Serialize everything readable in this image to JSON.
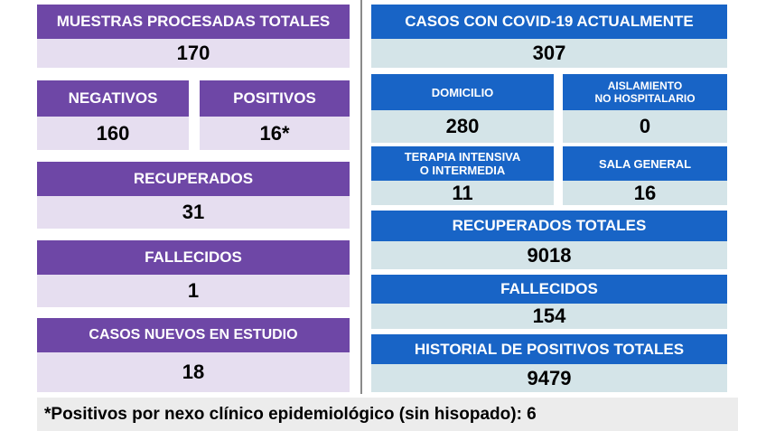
{
  "left": {
    "muestras": {
      "label": "MUESTRAS PROCESADAS TOTALES",
      "value": "170"
    },
    "negativos": {
      "label": "NEGATIVOS",
      "value": "160"
    },
    "positivos": {
      "label": "POSITIVOS",
      "value": "16*"
    },
    "recuperados": {
      "label": "RECUPERADOS",
      "value": "31"
    },
    "fallecidos": {
      "label": "FALLECIDOS",
      "value": "1"
    },
    "casos_nuevos": {
      "label": "CASOS NUEVOS EN ESTUDIO",
      "value": "18"
    }
  },
  "right": {
    "casos_actuales": {
      "label": "CASOS CON COVID-19 ACTUALMENTE",
      "value": "307"
    },
    "domicilio": {
      "label": "DOMICILIO",
      "value": "280"
    },
    "aislamiento": {
      "label_line1": "AISLAMIENTO",
      "label_line2": "NO HOSPITALARIO",
      "value": "0"
    },
    "terapia": {
      "label_line1": "TERAPIA INTENSIVA",
      "label_line2": "O INTERMEDIA",
      "value": "11"
    },
    "sala_general": {
      "label": "SALA GENERAL",
      "value": "16"
    },
    "recuperados_totales": {
      "label": "RECUPERADOS TOTALES",
      "value": "9018"
    },
    "fallecidos": {
      "label": "FALLECIDOS",
      "value": "154"
    },
    "historial": {
      "label": "HISTORIAL DE POSITIVOS TOTALES",
      "value": "9479"
    }
  },
  "footer": {
    "note": "*Positivos por nexo clínico epidemiológico (sin hisopado): 6"
  },
  "colors": {
    "purple_header": "#6e47a6",
    "purple_value_bg": "#e6def0",
    "blue_header": "#1864c6",
    "blue_value_bg": "#d4e4e8",
    "footer_bg": "#ececec"
  }
}
